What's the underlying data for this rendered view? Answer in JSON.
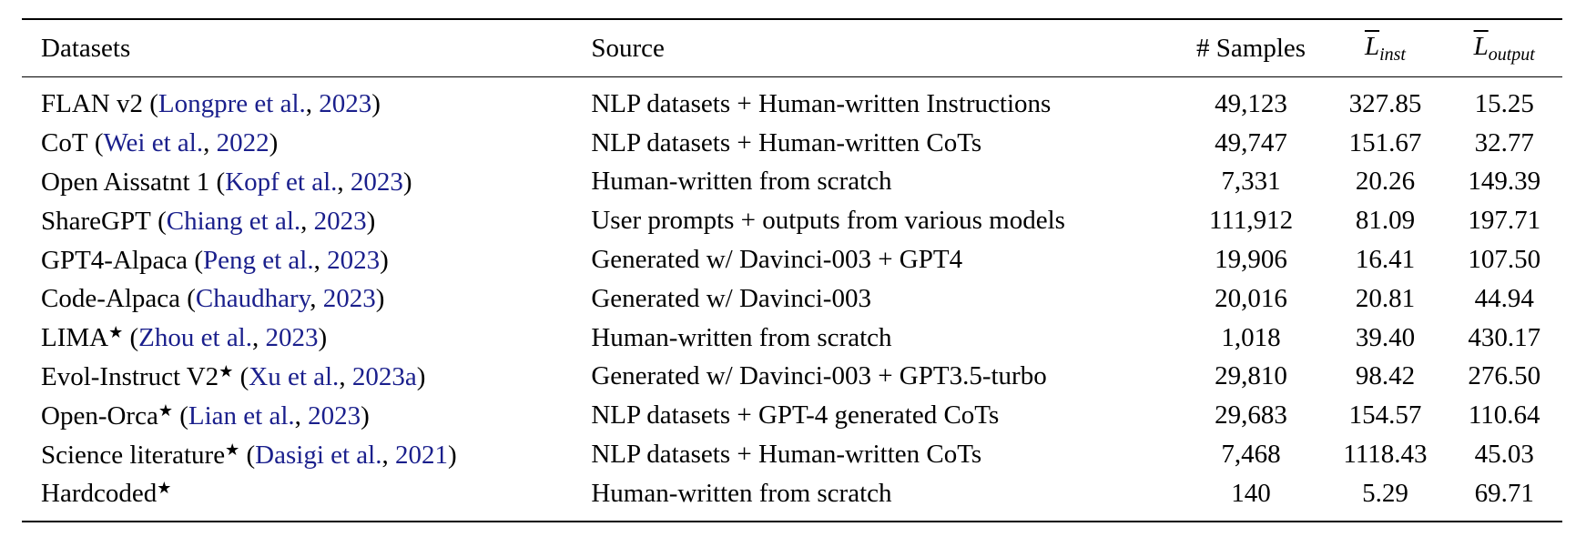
{
  "header": {
    "datasets": "Datasets",
    "source": "Source",
    "samples": "# Samples",
    "l_inst_base": "L",
    "l_inst_sub": "inst",
    "l_output_base": "L",
    "l_output_sub": "output"
  },
  "rows": [
    {
      "name": "FLAN v2",
      "star": "",
      "open": " (",
      "cite_authors": "Longpre et al.",
      "sep": ", ",
      "cite_year": "2023",
      "close": ")",
      "source": "NLP datasets + Human-written Instructions",
      "samples": "49,123",
      "l_inst": "327.85",
      "l_output": "15.25"
    },
    {
      "name": "CoT",
      "star": "",
      "open": " (",
      "cite_authors": "Wei et al.",
      "sep": ", ",
      "cite_year": "2022",
      "close": ")",
      "source": "NLP datasets + Human-written CoTs",
      "samples": "49,747",
      "l_inst": "151.67",
      "l_output": "32.77"
    },
    {
      "name": "Open Aissatnt 1",
      "star": "",
      "open": " (",
      "cite_authors": "Kopf et al.",
      "sep": ", ",
      "cite_year": "2023",
      "close": ")",
      "source": "Human-written from scratch",
      "samples": "7,331",
      "l_inst": "20.26",
      "l_output": "149.39"
    },
    {
      "name": "ShareGPT",
      "star": "",
      "open": " (",
      "cite_authors": "Chiang et al.",
      "sep": ", ",
      "cite_year": "2023",
      "close": ")",
      "source": "User prompts + outputs from various models",
      "samples": "111,912",
      "l_inst": "81.09",
      "l_output": "197.71"
    },
    {
      "name": "GPT4-Alpaca",
      "star": "",
      "open": " (",
      "cite_authors": "Peng et al.",
      "sep": ", ",
      "cite_year": "2023",
      "close": ")",
      "source": "Generated w/ Davinci-003 + GPT4",
      "samples": "19,906",
      "l_inst": "16.41",
      "l_output": "107.50"
    },
    {
      "name": "Code-Alpaca",
      "star": "",
      "open": " (",
      "cite_authors": "Chaudhary",
      "sep": ", ",
      "cite_year": "2023",
      "close": ")",
      "source": "Generated w/ Davinci-003",
      "samples": "20,016",
      "l_inst": "20.81",
      "l_output": "44.94"
    },
    {
      "name": "LIMA",
      "star": "★",
      "open": " (",
      "cite_authors": "Zhou et al.",
      "sep": ", ",
      "cite_year": "2023",
      "close": ")",
      "source": "Human-written from scratch",
      "samples": "1,018",
      "l_inst": "39.40",
      "l_output": "430.17"
    },
    {
      "name": "Evol-Instruct V2",
      "star": "★",
      "open": " (",
      "cite_authors": "Xu et al.",
      "sep": ", ",
      "cite_year": "2023a",
      "close": ")",
      "source": "Generated w/ Davinci-003 + GPT3.5-turbo",
      "samples": "29,810",
      "l_inst": "98.42",
      "l_output": "276.50"
    },
    {
      "name": "Open-Orca",
      "star": "★",
      "open": " (",
      "cite_authors": "Lian et al.",
      "sep": ", ",
      "cite_year": "2023",
      "close": ")",
      "source": "NLP datasets + GPT-4 generated CoTs",
      "samples": "29,683",
      "l_inst": "154.57",
      "l_output": "110.64"
    },
    {
      "name": "Science literature",
      "star": "★",
      "open": " (",
      "cite_authors": "Dasigi et al.",
      "sep": ", ",
      "cite_year": "2021",
      "close": ")",
      "source": "NLP datasets + Human-written CoTs",
      "samples": "7,468",
      "l_inst": "1118.43",
      "l_output": "45.03"
    },
    {
      "name": "Hardcoded",
      "star": "★",
      "open": "",
      "cite_authors": "",
      "sep": "",
      "cite_year": "",
      "close": "",
      "source": "Human-written from scratch",
      "samples": "140",
      "l_inst": "5.29",
      "l_output": "69.71"
    }
  ]
}
